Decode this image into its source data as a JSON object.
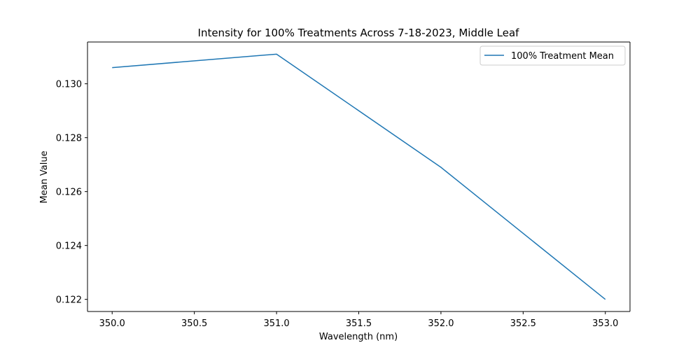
{
  "chart_data": {
    "type": "line",
    "title": "Intensity for 100% Treatments Across 7-18-2023, Middle Leaf",
    "xlabel": "Wavelength (nm)",
    "ylabel": "Mean Value",
    "xlim": [
      349.85,
      353.15
    ],
    "ylim": [
      0.12155,
      0.13155
    ],
    "xticks": [
      350.0,
      350.5,
      351.0,
      351.5,
      352.0,
      352.5,
      353.0
    ],
    "xtick_labels": [
      "350.0",
      "350.5",
      "351.0",
      "351.5",
      "352.0",
      "352.5",
      "353.0"
    ],
    "yticks": [
      0.122,
      0.124,
      0.126,
      0.128,
      0.13
    ],
    "ytick_labels": [
      "0.122",
      "0.124",
      "0.126",
      "0.128",
      "0.130"
    ],
    "grid": false,
    "legend_position": "top-right",
    "series": [
      {
        "name": "100% Treatment Mean",
        "color": "#1f77b4",
        "x": [
          350.0,
          351.0,
          352.0,
          353.0
        ],
        "y": [
          0.1306,
          0.1311,
          0.1269,
          0.122
        ]
      }
    ]
  }
}
